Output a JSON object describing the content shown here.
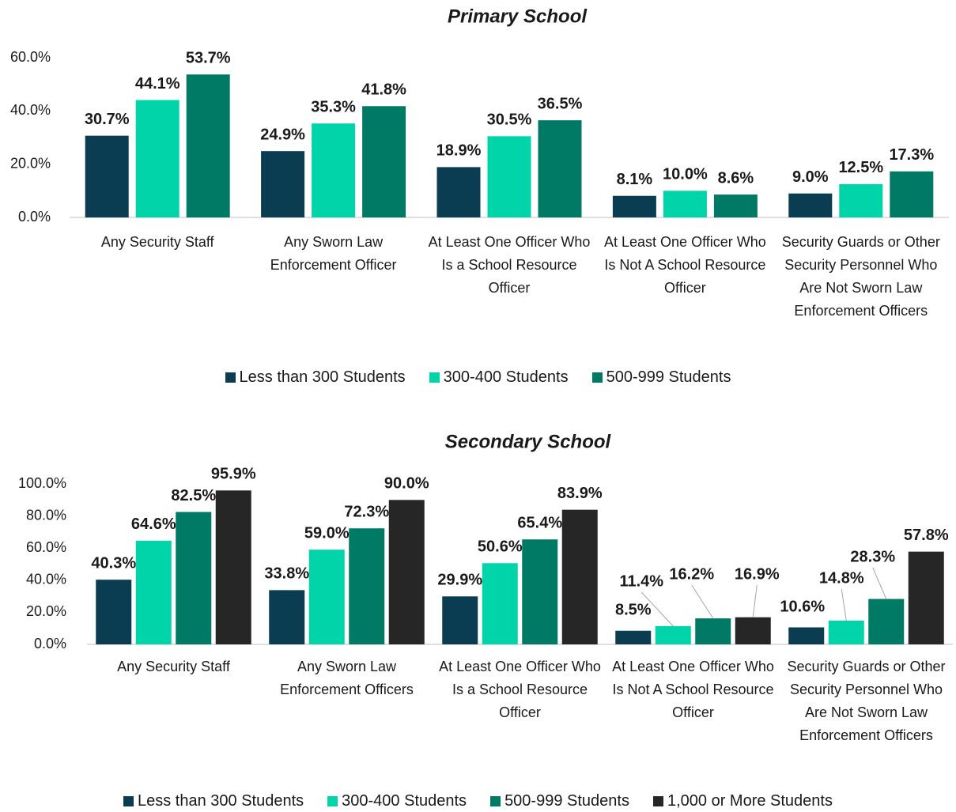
{
  "chart_data": [
    {
      "type": "bar",
      "title": "Primary School",
      "categories": [
        "Any Security Staff",
        "Any Sworn Law Enforcement Officer",
        "At Least One Officer Who Is a School Resource Officer",
        "At Least One Officer Who Is Not A School Resource Officer",
        "Security Guards or Other Security Personnel Who Are Not Sworn Law Enforcement Officers"
      ],
      "series": [
        {
          "name": "Less than 300 Students",
          "color": "#0b3d52",
          "values": [
            30.7,
            24.9,
            18.9,
            8.1,
            9.0
          ],
          "value_labels": [
            "30.7%",
            "24.9%",
            "18.9%",
            "8.1%",
            "9.0%"
          ]
        },
        {
          "name": "300-400 Students",
          "color": "#00d4a8",
          "values": [
            44.1,
            35.3,
            30.5,
            10.0,
            12.5
          ],
          "value_labels": [
            "44.1%",
            "35.3%",
            "30.5%",
            "10.0%",
            "12.5%"
          ]
        },
        {
          "name": "500-999 Students",
          "color": "#007a65",
          "values": [
            53.7,
            41.8,
            36.5,
            8.6,
            17.3
          ],
          "value_labels": [
            "53.7%",
            "41.8%",
            "36.5%",
            "8.6%",
            "17.3%"
          ]
        }
      ],
      "ylim": [
        0,
        60
      ],
      "yticks": [
        {
          "value": 0,
          "label": "0.0%"
        },
        {
          "value": 20,
          "label": "20.0%"
        },
        {
          "value": 40,
          "label": "40.0%"
        },
        {
          "value": 60,
          "label": "60.0%"
        }
      ],
      "grid": false,
      "legend": "bottom"
    },
    {
      "type": "bar",
      "title": "Secondary School",
      "categories": [
        "Any Security Staff",
        "Any Sworn Law Enforcement Officers",
        "At Least One Officer Who Is a School Resource Officer",
        "At Least One Officer Who Is Not A School Resource Officer",
        "Security Guards or Other Security Personnel Who Are Not Sworn Law Enforcement Officers"
      ],
      "series": [
        {
          "name": "Less than 300 Students",
          "color": "#0b3d52",
          "values": [
            40.3,
            33.8,
            29.9,
            8.5,
            10.6
          ],
          "value_labels": [
            "40.3%",
            "33.8%",
            "29.9%",
            "8.5%",
            "10.6%"
          ]
        },
        {
          "name": "300-400 Students",
          "color": "#00d4a8",
          "values": [
            64.6,
            59.0,
            50.6,
            11.4,
            14.8
          ],
          "value_labels": [
            "64.6%",
            "59.0%",
            "50.6%",
            "11.4%",
            "14.8%"
          ]
        },
        {
          "name": "500-999 Students",
          "color": "#007a65",
          "values": [
            82.5,
            72.3,
            65.4,
            16.2,
            28.3
          ],
          "value_labels": [
            "82.5%",
            "72.3%",
            "65.4%",
            "16.2%",
            "28.3%"
          ]
        },
        {
          "name": "1,000 or More Students",
          "color": "#262626",
          "values": [
            95.9,
            90.0,
            83.9,
            16.9,
            57.8
          ],
          "value_labels": [
            "95.9%",
            "90.0%",
            "83.9%",
            "16.9%",
            "57.8%"
          ]
        }
      ],
      "ylim": [
        0,
        100
      ],
      "yticks": [
        {
          "value": 0,
          "label": "0.0%"
        },
        {
          "value": 20,
          "label": "20.0%"
        },
        {
          "value": 40,
          "label": "40.0%"
        },
        {
          "value": 60,
          "label": "60.0%"
        },
        {
          "value": 80,
          "label": "80.0%"
        },
        {
          "value": 100,
          "label": "100.0%"
        }
      ],
      "grid": false,
      "legend": "bottom"
    }
  ]
}
